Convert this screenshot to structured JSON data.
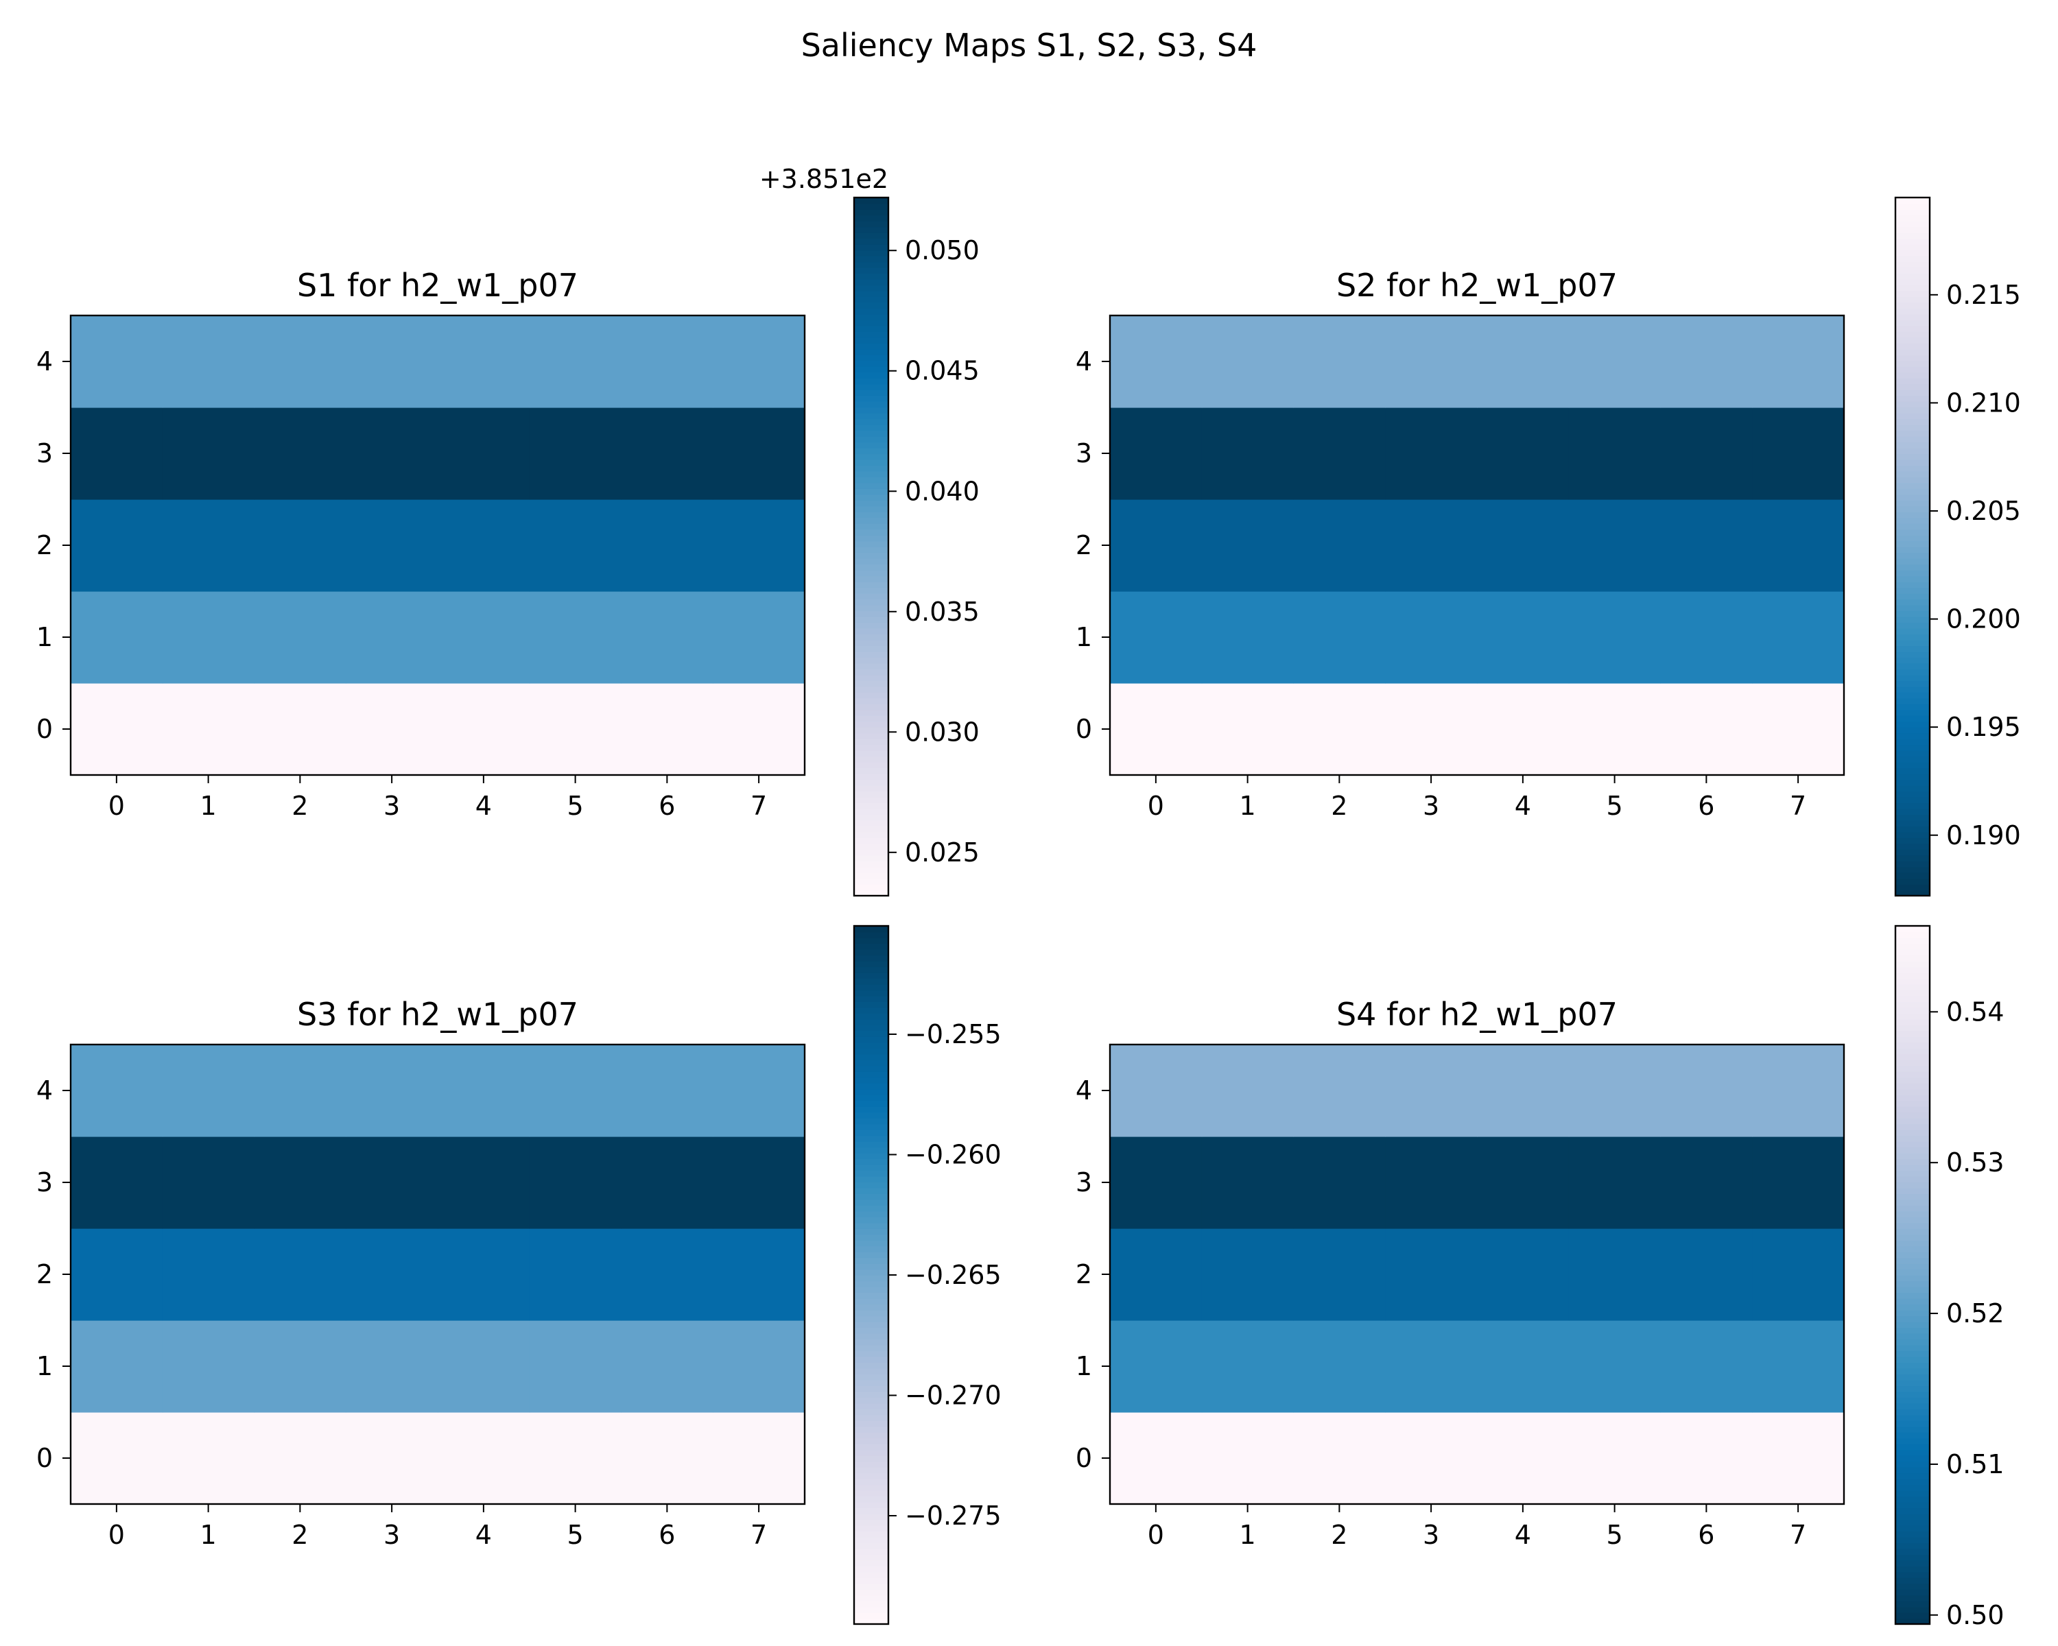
{
  "figure": {
    "suptitle": "Saliency Maps S1, S2, S3, S4"
  },
  "chart_data": [
    {
      "type": "heatmap",
      "title": "S1 for h2_w1_p07",
      "colormap": "PuBu",
      "x": [
        0,
        1,
        2,
        3,
        4,
        5,
        6,
        7
      ],
      "y": [
        0,
        1,
        2,
        3,
        4
      ],
      "xticks": [
        "0",
        "1",
        "2",
        "3",
        "4",
        "5",
        "6",
        "7"
      ],
      "yticks": [
        "0",
        "1",
        "2",
        "3",
        "4"
      ],
      "row_values": [
        385.1234,
        385.1399,
        385.147,
        385.1521,
        385.139
      ],
      "colorbar": {
        "vmin": 385.1232,
        "vmax": 385.1522,
        "ticks": [
          0.025,
          0.03,
          0.035,
          0.04,
          0.045,
          0.05
        ],
        "tick_labels": [
          "0.025",
          "0.030",
          "0.035",
          "0.040",
          "0.045",
          "0.050"
        ],
        "offset_label": "+3.851e2",
        "orientation": "PuBu"
      }
    },
    {
      "type": "heatmap",
      "title": "S2 for h2_w1_p07",
      "colormap": "PuBu_r",
      "x": [
        0,
        1,
        2,
        3,
        4,
        5,
        6,
        7
      ],
      "y": [
        0,
        1,
        2,
        3,
        4
      ],
      "xticks": [
        "0",
        "1",
        "2",
        "3",
        "4",
        "5",
        "6",
        "7"
      ],
      "yticks": [
        "0",
        "1",
        "2",
        "3",
        "4"
      ],
      "row_values": [
        0.2194,
        0.1975,
        0.192,
        0.1875,
        0.204
      ],
      "colorbar": {
        "vmin": 0.1872,
        "vmax": 0.2195,
        "ticks": [
          0.19,
          0.195,
          0.2,
          0.205,
          0.21,
          0.215
        ],
        "tick_labels": [
          "0.190",
          "0.195",
          "0.200",
          "0.205",
          "0.210",
          "0.215"
        ],
        "offset_label": "",
        "orientation": "PuBu_r"
      }
    },
    {
      "type": "heatmap",
      "title": "S3 for h2_w1_p07",
      "colormap": "PuBu",
      "x": [
        0,
        1,
        2,
        3,
        4,
        5,
        6,
        7
      ],
      "y": [
        0,
        1,
        2,
        3,
        4
      ],
      "xticks": [
        "0",
        "1",
        "2",
        "3",
        "4",
        "5",
        "6",
        "7"
      ],
      "yticks": [
        "0",
        "1",
        "2",
        "3",
        "4"
      ],
      "row_values": [
        -0.2792,
        -0.264,
        -0.257,
        -0.2508,
        -0.2635
      ],
      "colorbar": {
        "vmin": -0.2795,
        "vmax": -0.2505,
        "ticks": [
          -0.275,
          -0.27,
          -0.265,
          -0.26,
          -0.255
        ],
        "tick_labels": [
          "−0.275",
          "−0.270",
          "−0.265",
          "−0.260",
          "−0.255"
        ],
        "offset_label": "",
        "orientation": "PuBu"
      }
    },
    {
      "type": "heatmap",
      "title": "S4 for h2_w1_p07",
      "colormap": "PuBu_r",
      "x": [
        0,
        1,
        2,
        3,
        4,
        5,
        6,
        7
      ],
      "y": [
        0,
        1,
        2,
        3,
        4
      ],
      "xticks": [
        "0",
        "1",
        "2",
        "3",
        "4",
        "5",
        "6",
        "7"
      ],
      "yticks": [
        "0",
        "1",
        "2",
        "3",
        "4"
      ],
      "row_values": [
        0.5455,
        0.516,
        0.508,
        0.5,
        0.525
      ],
      "colorbar": {
        "vmin": 0.4994,
        "vmax": 0.5457,
        "ticks": [
          0.5,
          0.51,
          0.52,
          0.53,
          0.54
        ],
        "tick_labels": [
          "0.50",
          "0.51",
          "0.52",
          "0.53",
          "0.54"
        ],
        "offset_label": "",
        "orientation": "PuBu_r"
      }
    }
  ]
}
